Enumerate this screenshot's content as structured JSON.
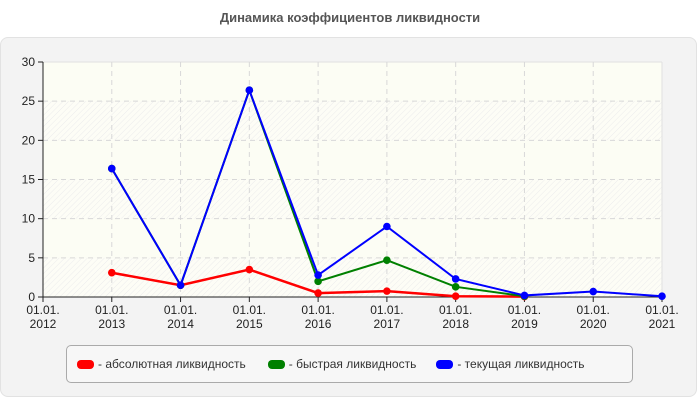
{
  "chart_data": {
    "type": "line",
    "title": "Динамика коэффициентов ликвидности",
    "xlabel": "",
    "ylabel": "",
    "x": [
      "01.01.2012",
      "01.01.2013",
      "01.01.2014",
      "01.01.2015",
      "01.01.2016",
      "01.01.2017",
      "01.01.2018",
      "01.01.2019",
      "01.01.2020",
      "01.01.2021"
    ],
    "x_tick_labels": [
      [
        "01.01.",
        "2012"
      ],
      [
        "01.01.",
        "2013"
      ],
      [
        "01.01.",
        "2014"
      ],
      [
        "01.01.",
        "2015"
      ],
      [
        "01.01.",
        "2016"
      ],
      [
        "01.01.",
        "2017"
      ],
      [
        "01.01.",
        "2018"
      ],
      [
        "01.01.",
        "2019"
      ],
      [
        "01.01.",
        "2020"
      ],
      [
        "01.01.",
        "2021"
      ]
    ],
    "yticks": [
      0,
      5,
      10,
      15,
      20,
      25,
      30
    ],
    "ylim": [
      0,
      30
    ],
    "grid": true,
    "legend_position": "bottom",
    "series": [
      {
        "name": "абсолютная ликвидность",
        "color": "#ff0000",
        "values": [
          null,
          3.1,
          1.5,
          3.5,
          0.5,
          0.75,
          0.1,
          0.05,
          null,
          null
        ]
      },
      {
        "name": "быстрая ликвидность",
        "color": "#008000",
        "values": [
          null,
          16.4,
          1.5,
          26.4,
          2.0,
          4.7,
          1.3,
          0.1,
          null,
          null
        ]
      },
      {
        "name": "текущая ликвидность",
        "color": "#0000ff",
        "values": [
          null,
          16.4,
          1.5,
          26.4,
          2.8,
          9.0,
          2.3,
          0.2,
          0.7,
          0.1
        ]
      }
    ]
  },
  "legend": {
    "items": [
      {
        "label": "- абсолютная ликвидность",
        "color": "#ff0000"
      },
      {
        "label": "- быстрая ликвидность",
        "color": "#008000"
      },
      {
        "label": "- текущая ликвидность",
        "color": "#0000ff"
      }
    ]
  }
}
